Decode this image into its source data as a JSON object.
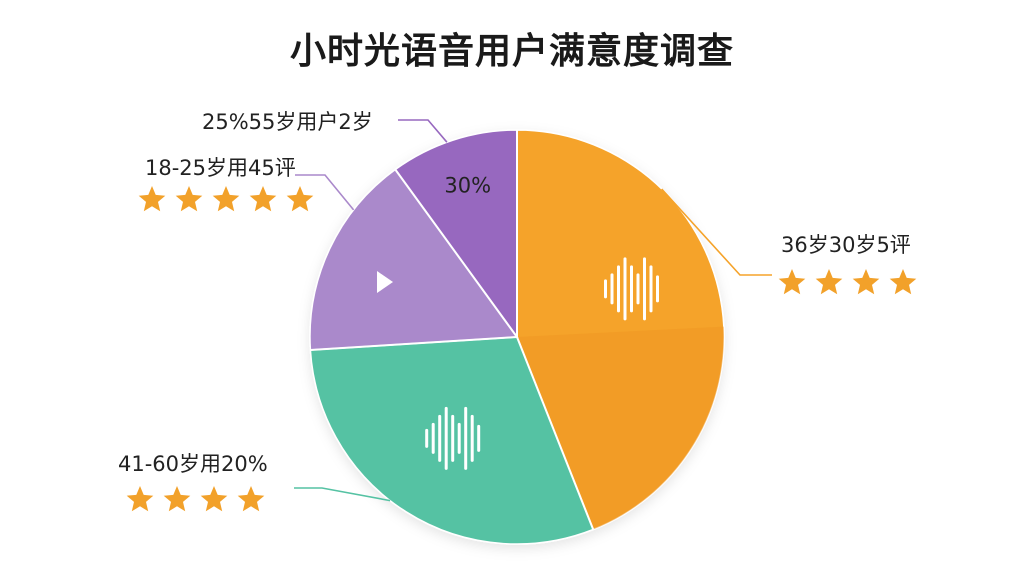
{
  "chart_data": {
    "type": "pie",
    "title": "小时光语音用户满意度调查",
    "inner_label": "30%",
    "slices": [
      {
        "label": "36岁30岁5评",
        "value": 44,
        "stars": 4,
        "color": "#f5a32a",
        "shade": "#ef9822",
        "icon": "sound-wave-icon"
      },
      {
        "label": "41-60岁用20%",
        "value": 30,
        "stars": 4,
        "color": "#55c2a3",
        "icon": "sound-wave-icon"
      },
      {
        "label": "18-25岁用45评",
        "value": 16,
        "stars": 5,
        "color": "#aa89cb",
        "icon": "play-icon"
      },
      {
        "label": "25%55岁用户2岁",
        "value": 10,
        "stars": 0,
        "color": "#9768bf"
      }
    ],
    "star_color": "#f2a12a"
  }
}
